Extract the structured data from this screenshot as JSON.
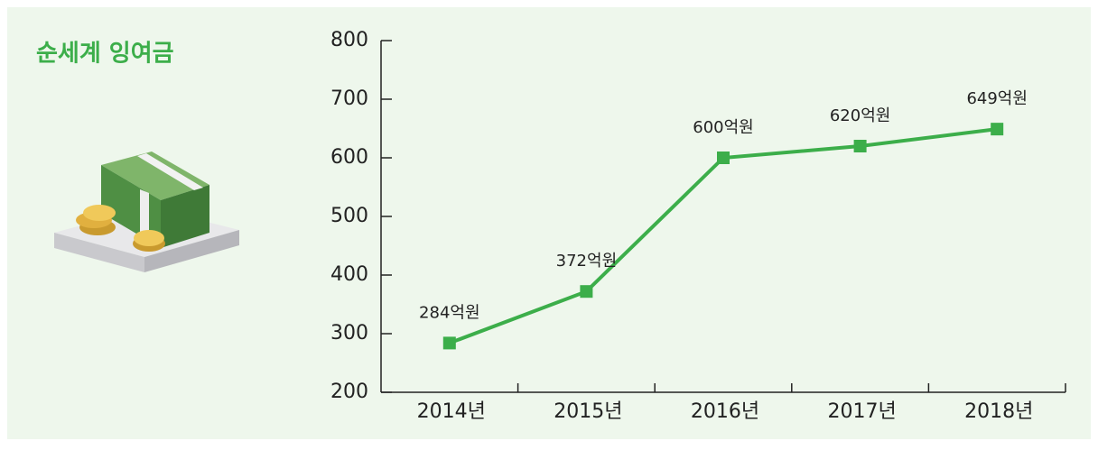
{
  "chart_data": {
    "type": "line",
    "title": "순세계 잉여금",
    "categories": [
      "2014년",
      "2015년",
      "2016년",
      "2017년",
      "2018년"
    ],
    "values": [
      284,
      372,
      600,
      620,
      649
    ],
    "value_labels": [
      "284억원",
      "372억원",
      "600억원",
      "620억원",
      "649억원"
    ],
    "color": "#3cae4a",
    "ylim": [
      200,
      800
    ],
    "yticks": [
      200,
      300,
      400,
      500,
      600,
      700,
      800
    ],
    "grid": false
  }
}
